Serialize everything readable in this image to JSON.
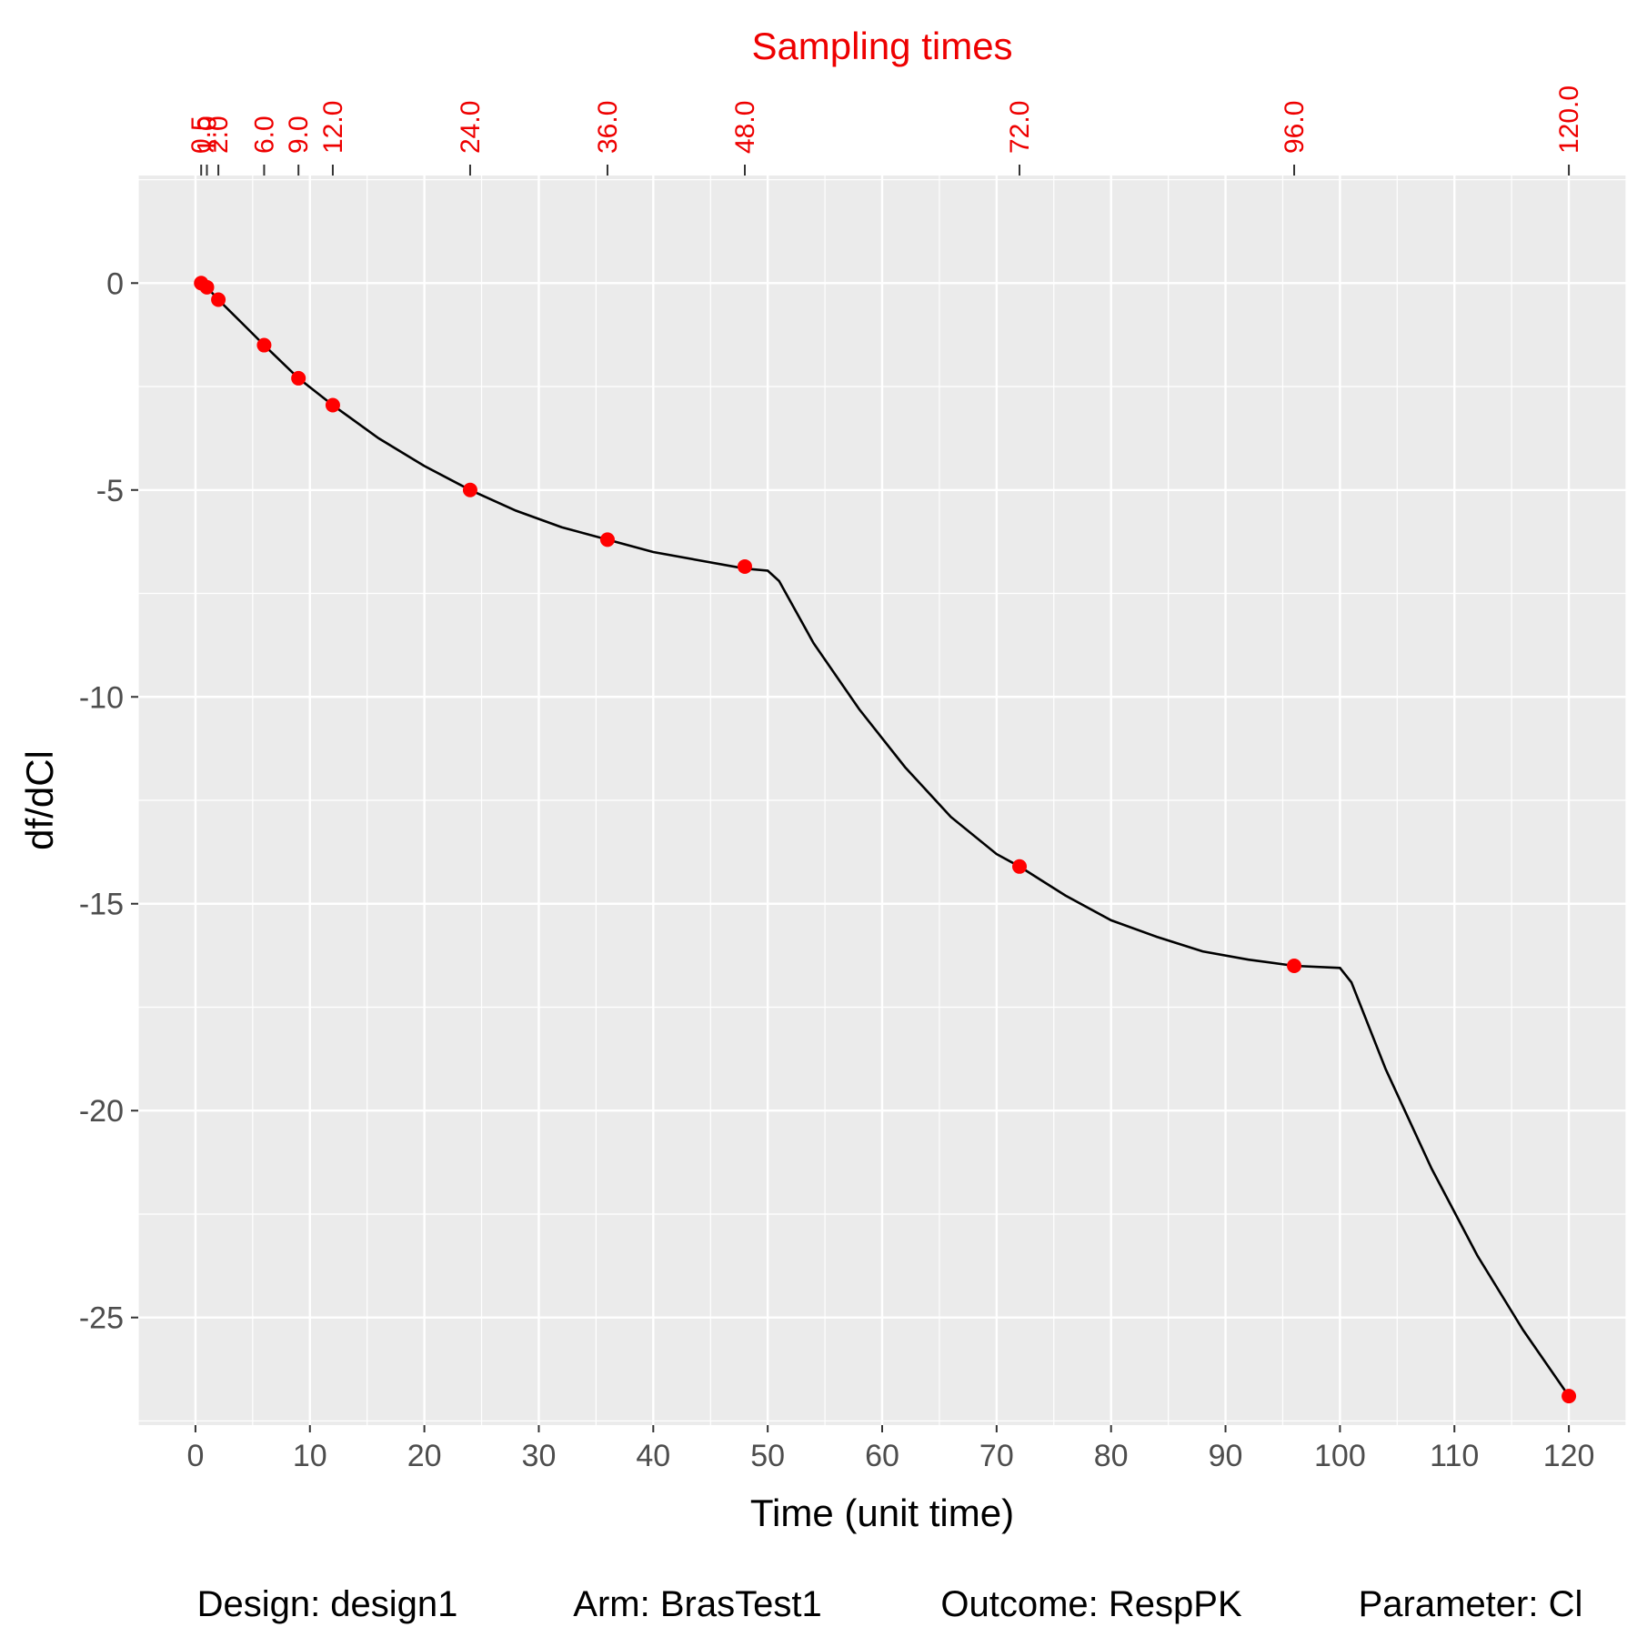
{
  "chart_data": {
    "type": "line",
    "xlabel": "Time (unit time)",
    "ylabel": "df/dCl",
    "xlim": [
      -5,
      125
    ],
    "ylim": [
      -27.6,
      2.6
    ],
    "x_ticks": [
      0,
      10,
      20,
      30,
      40,
      50,
      60,
      70,
      80,
      90,
      100,
      110,
      120
    ],
    "y_ticks": [
      0,
      -5,
      -10,
      -15,
      -20,
      -25
    ],
    "grid": true,
    "curve": {
      "x": [
        0.5,
        1,
        2,
        4,
        6,
        9,
        12,
        16,
        20,
        24,
        28,
        32,
        36,
        40,
        44,
        48,
        50,
        51,
        54,
        58,
        62,
        66,
        70,
        72,
        76,
        80,
        84,
        88,
        92,
        96,
        100,
        101,
        104,
        108,
        112,
        116,
        120
      ],
      "y": [
        0,
        -0.1,
        -0.4,
        -0.95,
        -1.5,
        -2.3,
        -2.95,
        -3.75,
        -4.42,
        -5.0,
        -5.5,
        -5.9,
        -6.2,
        -6.5,
        -6.7,
        -6.9,
        -6.95,
        -7.2,
        -8.7,
        -10.3,
        -11.7,
        -12.9,
        -13.8,
        -14.1,
        -14.8,
        -15.4,
        -15.8,
        -16.15,
        -16.35,
        -16.5,
        -16.55,
        -16.9,
        -19.0,
        -21.4,
        -23.5,
        -25.3,
        -26.9
      ]
    },
    "points": {
      "x": [
        0.5,
        1,
        2,
        6,
        9,
        12,
        24,
        36,
        48,
        72,
        96,
        120
      ],
      "y": [
        0,
        -0.1,
        -0.4,
        -1.5,
        -2.3,
        -2.95,
        -5.0,
        -6.2,
        -6.85,
        -14.1,
        -16.5,
        -26.9
      ]
    },
    "sampling_times": {
      "title": "Sampling times",
      "values": [
        0.5,
        1.0,
        2.0,
        6.0,
        9.0,
        12.0,
        24.0,
        36.0,
        48.0,
        72.0,
        96.0,
        120.0
      ],
      "labels": [
        "0.5",
        "1.0",
        "2.0",
        "6.0",
        "9.0",
        "12.0",
        "24.0",
        "36.0",
        "48.0",
        "72.0",
        "96.0",
        "120.0"
      ]
    },
    "caption": [
      "Design: design1",
      "Arm: BrasTest1",
      "Outcome: RespPK",
      "Parameter: Cl"
    ],
    "colors": {
      "panel": "#ebebeb",
      "grid": "#ffffff",
      "line": "#000000",
      "points": "#ff0000",
      "sampling": "#ee0000"
    }
  }
}
